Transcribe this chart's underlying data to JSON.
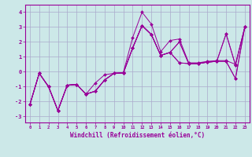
{
  "xlabel": "Windchill (Refroidissement éolien,°C)",
  "bg_color": "#cce8e8",
  "grid_color": "#aaaacc",
  "line_color": "#990099",
  "xlim": [
    -0.5,
    23.5
  ],
  "ylim": [
    -3.4,
    4.5
  ],
  "yticks": [
    -3,
    -2,
    -1,
    0,
    1,
    2,
    3,
    4
  ],
  "xticks": [
    0,
    1,
    2,
    3,
    4,
    5,
    6,
    7,
    8,
    9,
    10,
    11,
    12,
    13,
    14,
    15,
    16,
    17,
    18,
    19,
    20,
    21,
    22,
    23
  ],
  "xdata": [
    0,
    1,
    2,
    3,
    4,
    5,
    6,
    7,
    8,
    9,
    10,
    11,
    12,
    13,
    14,
    15,
    16,
    17,
    18,
    19,
    20,
    21,
    22,
    23
  ],
  "lines": [
    [
      -2.2,
      -0.1,
      -1.0,
      -2.6,
      -0.9,
      -0.85,
      -1.5,
      -0.75,
      -0.2,
      -0.1,
      -0.05,
      2.3,
      4.0,
      3.2,
      1.35,
      2.1,
      2.2,
      0.6,
      0.6,
      0.7,
      0.75,
      0.75,
      0.5,
      3.0
    ],
    [
      -2.2,
      -0.1,
      -1.0,
      -2.6,
      -0.9,
      -0.85,
      -1.5,
      -1.3,
      -0.55,
      -0.1,
      -0.08,
      1.6,
      3.1,
      2.5,
      1.1,
      1.3,
      2.0,
      0.55,
      0.55,
      0.65,
      0.7,
      0.7,
      -0.45,
      3.0
    ],
    [
      -2.2,
      -0.1,
      -1.0,
      -2.6,
      -0.9,
      -0.85,
      -1.5,
      -1.3,
      -0.55,
      -0.1,
      -0.08,
      1.6,
      3.1,
      2.5,
      1.1,
      1.3,
      2.0,
      0.55,
      0.55,
      0.65,
      0.7,
      2.55,
      0.45,
      3.0
    ],
    [
      -2.2,
      -0.1,
      -1.0,
      -2.6,
      -0.9,
      -0.85,
      -1.5,
      -1.3,
      -0.55,
      -0.1,
      -0.08,
      1.6,
      3.1,
      2.5,
      1.1,
      1.3,
      0.6,
      0.55,
      0.55,
      0.65,
      0.7,
      0.7,
      -0.45,
      3.0
    ],
    [
      -2.2,
      -0.1,
      -1.0,
      -2.6,
      -0.9,
      -0.85,
      -1.5,
      -1.3,
      -0.55,
      -0.1,
      -0.08,
      1.6,
      3.1,
      2.5,
      1.1,
      1.3,
      0.6,
      0.55,
      0.55,
      0.65,
      0.7,
      2.55,
      0.45,
      3.0
    ]
  ]
}
